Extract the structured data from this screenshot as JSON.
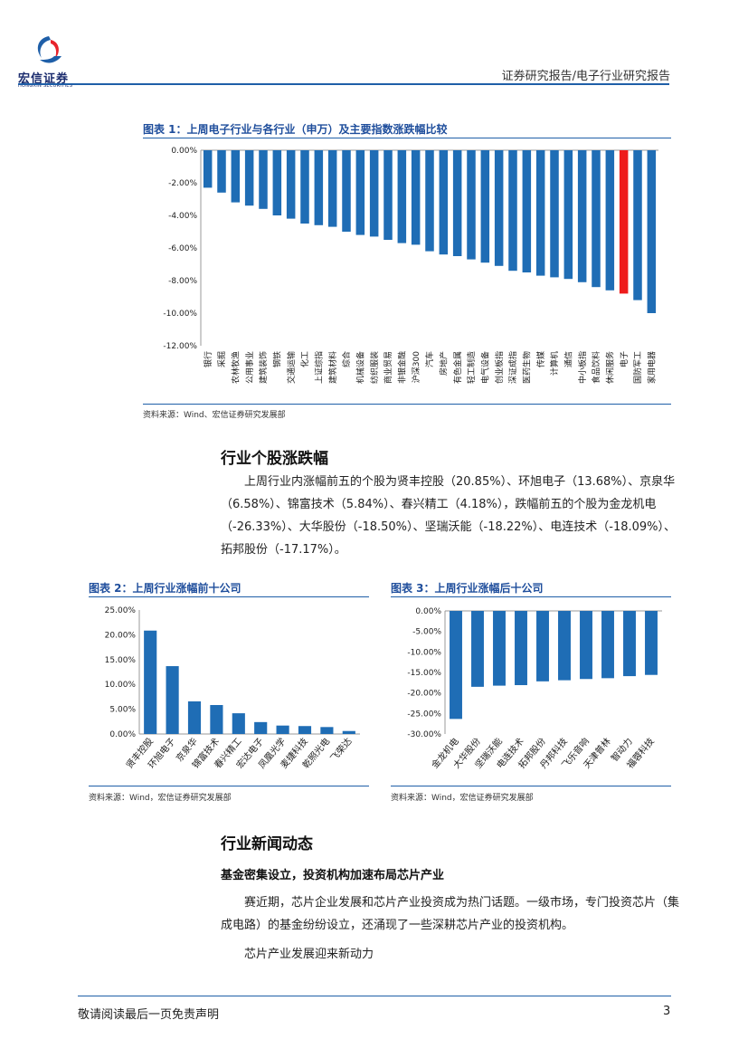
{
  "header": {
    "logo_text": "宏信证券",
    "logo_sub": "HONGXIN SECURITIES",
    "report_type": "证券研究报告/电子行业研究报告"
  },
  "figure1": {
    "title": "图表 1：上周电子行业与各行业（申万）及主要指数涨跌幅比较",
    "source": "资料来源：Wind、宏信证券研究发展部"
  },
  "section1": {
    "heading": "行业个股涨跌幅",
    "paragraph": "上周行业内涨幅前五的个股为贤丰控股（20.85%）、环旭电子（13.68%）、京泉华（6.58%）、锦富技术（5.84%）、春兴精工（4.18%），跌幅前五的个股为金龙机电（-26.33%）、大华股份（-18.50%）、坚瑞沃能（-18.22%）、电连技术（-18.09%）、拓邦股份（-17.17%）。"
  },
  "figure2": {
    "title": "图表 2：上周行业涨幅前十公司",
    "source": "资料来源：Wind，宏信证券研究发展部"
  },
  "figure3": {
    "title": "图表 3：上周行业涨幅后十公司",
    "source": "资料来源：Wind，宏信证券研究发展部"
  },
  "section2": {
    "heading": "行业新闻动态",
    "subheading": "基金密集设立，投资机构加速布局芯片产业",
    "paragraph": "赛近期，芯片企业发展和芯片产业投资成为热门话题。一级市场，专门投资芯片（集成电路）的基金纷纷设立，还涌现了一些深耕芯片产业的投资机构。",
    "paragraph2": "芯片产业发展迎来新动力"
  },
  "footer": {
    "disclaimer": "敬请阅读最后一页免责声明",
    "page_number": "3"
  },
  "colors": {
    "bar": "#1f6db5",
    "highlight": "#ee1c1c",
    "accent": "#1f4e9c"
  },
  "chart_data": [
    {
      "type": "bar",
      "categories": [
        "银行",
        "采掘",
        "农林牧渔",
        "公用事业",
        "建筑装饰",
        "钢铁",
        "交通运输",
        "化工",
        "上证综指",
        "建筑材料",
        "综合",
        "机械设备",
        "纺织服装",
        "商业贸易",
        "非银金融",
        "沪深300",
        "汽车",
        "房地产",
        "有色金属",
        "轻工制造",
        "电气设备",
        "创业板指",
        "深证成指",
        "医药生物",
        "传媒",
        "计算机",
        "通信",
        "中小板指",
        "食品饮料",
        "休闲服务",
        "电子",
        "国防军工",
        "家用电器"
      ],
      "values": [
        -2.3,
        -2.6,
        -3.2,
        -3.4,
        -3.6,
        -4.0,
        -4.2,
        -4.5,
        -4.6,
        -4.7,
        -5.0,
        -5.2,
        -5.3,
        -5.5,
        -5.7,
        -5.8,
        -6.2,
        -6.4,
        -6.5,
        -6.7,
        -6.9,
        -7.1,
        -7.4,
        -7.5,
        -7.7,
        -7.8,
        -7.9,
        -8.1,
        -8.4,
        -8.6,
        -8.8,
        -9.2,
        -10.0
      ],
      "highlight": "电子",
      "ylim": [
        -12,
        0
      ],
      "yticks": [
        "0.00%",
        "-2.00%",
        "-4.00%",
        "-6.00%",
        "-8.00%",
        "-10.00%",
        "-12.00%"
      ]
    },
    {
      "type": "bar",
      "categories": [
        "贤丰控股",
        "环旭电子",
        "京泉华",
        "锦富技术",
        "春兴精工",
        "宏达电子",
        "凤凰光学",
        "麦捷科技",
        "乾照光电",
        "飞荣达"
      ],
      "values": [
        20.85,
        13.68,
        6.58,
        5.84,
        4.18,
        2.4,
        1.7,
        1.6,
        1.4,
        0.6
      ],
      "ylim": [
        0,
        25
      ],
      "yticks": [
        "25.00%",
        "20.00%",
        "15.00%",
        "10.00%",
        "5.00%",
        "0.00%"
      ]
    },
    {
      "type": "bar",
      "categories": [
        "金龙机电",
        "大华股份",
        "坚瑞沃能",
        "电连技术",
        "拓邦股份",
        "丹邦科技",
        "飞乐音响",
        "天津普林",
        "智动力",
        "福蓉科技"
      ],
      "values": [
        -26.33,
        -18.5,
        -18.22,
        -18.09,
        -17.17,
        -16.9,
        -16.6,
        -16.4,
        -15.9,
        -15.6
      ],
      "ylim": [
        -30,
        0
      ],
      "yticks": [
        "0.00%",
        "-5.00%",
        "-10.00%",
        "-15.00%",
        "-20.00%",
        "-25.00%",
        "-30.00%"
      ]
    }
  ]
}
